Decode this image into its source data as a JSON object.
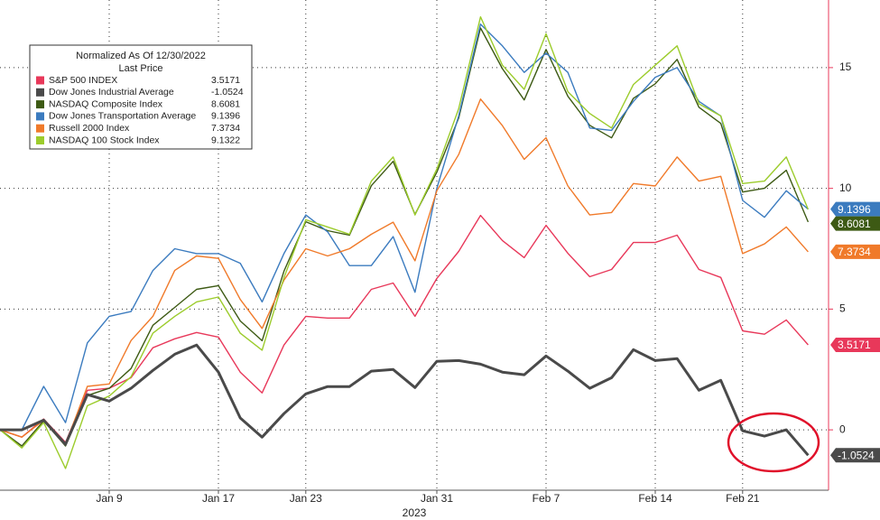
{
  "chart_data": {
    "type": "line",
    "legend_title": "Normalized As Of 12/30/2022",
    "legend_subtitle": "Last Price",
    "xlabel": "2023",
    "categories": [
      null,
      null,
      null,
      null,
      null,
      "Jan 9",
      null,
      null,
      null,
      null,
      "Jan 17",
      null,
      null,
      null,
      "Jan 23",
      null,
      null,
      null,
      null,
      null,
      "Jan 31",
      null,
      null,
      null,
      null,
      "Feb 7",
      null,
      null,
      null,
      null,
      "Feb 14",
      null,
      null,
      null,
      "Feb 21",
      null,
      null,
      null
    ],
    "ylim": [
      -2.5,
      17.8
    ],
    "yticks": [
      0,
      5,
      10,
      15
    ],
    "grid": true,
    "legend": "upper left",
    "series": [
      {
        "name": "S&P 500 INDEX",
        "color": "#e8385a",
        "values": [
          0,
          -0.3,
          0.45,
          -0.52,
          1.64,
          1.72,
          2.16,
          3.4,
          3.77,
          4.03,
          3.84,
          2.39,
          1.53,
          3.51,
          4.7,
          4.63,
          4.63,
          5.82,
          6.08,
          4.7,
          6.27,
          7.39,
          8.88,
          7.84,
          7.13,
          8.47,
          7.31,
          6.34,
          6.64,
          7.76,
          7.76,
          8.06,
          6.64,
          6.31,
          4.1,
          3.96,
          4.55,
          3.5171
        ]
      },
      {
        "name": "Dow Jones Industrial Average",
        "color": "#4a4a4a",
        "values": [
          0,
          0,
          0.4,
          -0.6,
          1.46,
          1.19,
          1.72,
          2.46,
          3.13,
          3.51,
          2.39,
          0.49,
          -0.3,
          0.67,
          1.49,
          1.79,
          1.79,
          2.43,
          2.5,
          1.75,
          2.84,
          2.87,
          2.72,
          2.39,
          2.28,
          3.06,
          2.43,
          1.72,
          2.16,
          3.32,
          2.87,
          2.95,
          1.64,
          2.05,
          -0.04,
          -0.26,
          0,
          -1.0524
        ]
      },
      {
        "name": "NASDAQ Composite Index",
        "color": "#3d5a14",
        "values": [
          0,
          -0.67,
          0.37,
          -0.67,
          1.42,
          1.72,
          2.54,
          4.33,
          5.07,
          5.82,
          5.97,
          4.51,
          3.69,
          6.57,
          8.62,
          8.25,
          8.06,
          10.11,
          11.12,
          8.92,
          10.67,
          12.91,
          16.64,
          14.96,
          13.66,
          15.75,
          13.81,
          12.61,
          12.09,
          13.73,
          14.33,
          15.34,
          13.36,
          12.69,
          9.85,
          10.0,
          10.75,
          8.6081
        ]
      },
      {
        "name": "Dow Jones Transportation Average",
        "color": "#3b7bbf",
        "values": [
          0,
          0,
          1.8,
          0.3,
          3.6,
          4.7,
          4.9,
          6.6,
          7.5,
          7.3,
          7.3,
          6.9,
          5.3,
          7.3,
          8.9,
          8.2,
          6.8,
          6.8,
          8.0,
          5.7,
          10.0,
          13.0,
          16.8,
          15.9,
          14.8,
          15.6,
          14.8,
          12.5,
          12.4,
          13.6,
          14.6,
          15.0,
          13.6,
          13.0,
          9.5,
          8.8,
          9.9,
          9.1396
        ]
      },
      {
        "name": "Russell 2000 Index",
        "color": "#f07a2a",
        "values": [
          0,
          -0.3,
          0.4,
          -0.6,
          1.8,
          1.9,
          3.7,
          4.7,
          6.6,
          7.2,
          7.1,
          5.4,
          4.2,
          6.2,
          7.5,
          7.2,
          7.5,
          8.1,
          8.6,
          7.0,
          9.9,
          11.4,
          13.7,
          12.6,
          11.2,
          12.1,
          10.1,
          8.9,
          9.0,
          10.2,
          10.1,
          11.3,
          10.3,
          10.5,
          7.3,
          7.7,
          8.4,
          7.3734
        ]
      },
      {
        "name": "NASDAQ 100 Stock Index",
        "color": "#9ccc2c",
        "values": [
          0,
          -0.75,
          0.3,
          -1.6,
          1.0,
          1.4,
          2.2,
          4.0,
          4.7,
          5.3,
          5.5,
          4.0,
          3.3,
          6.3,
          8.7,
          8.4,
          8.1,
          10.3,
          11.3,
          8.9,
          10.8,
          13.3,
          17.1,
          15.1,
          14.1,
          16.4,
          14.0,
          13.1,
          12.5,
          14.3,
          15.1,
          15.9,
          13.5,
          13.0,
          10.2,
          10.3,
          11.3,
          9.1322
        ]
      }
    ]
  }
}
